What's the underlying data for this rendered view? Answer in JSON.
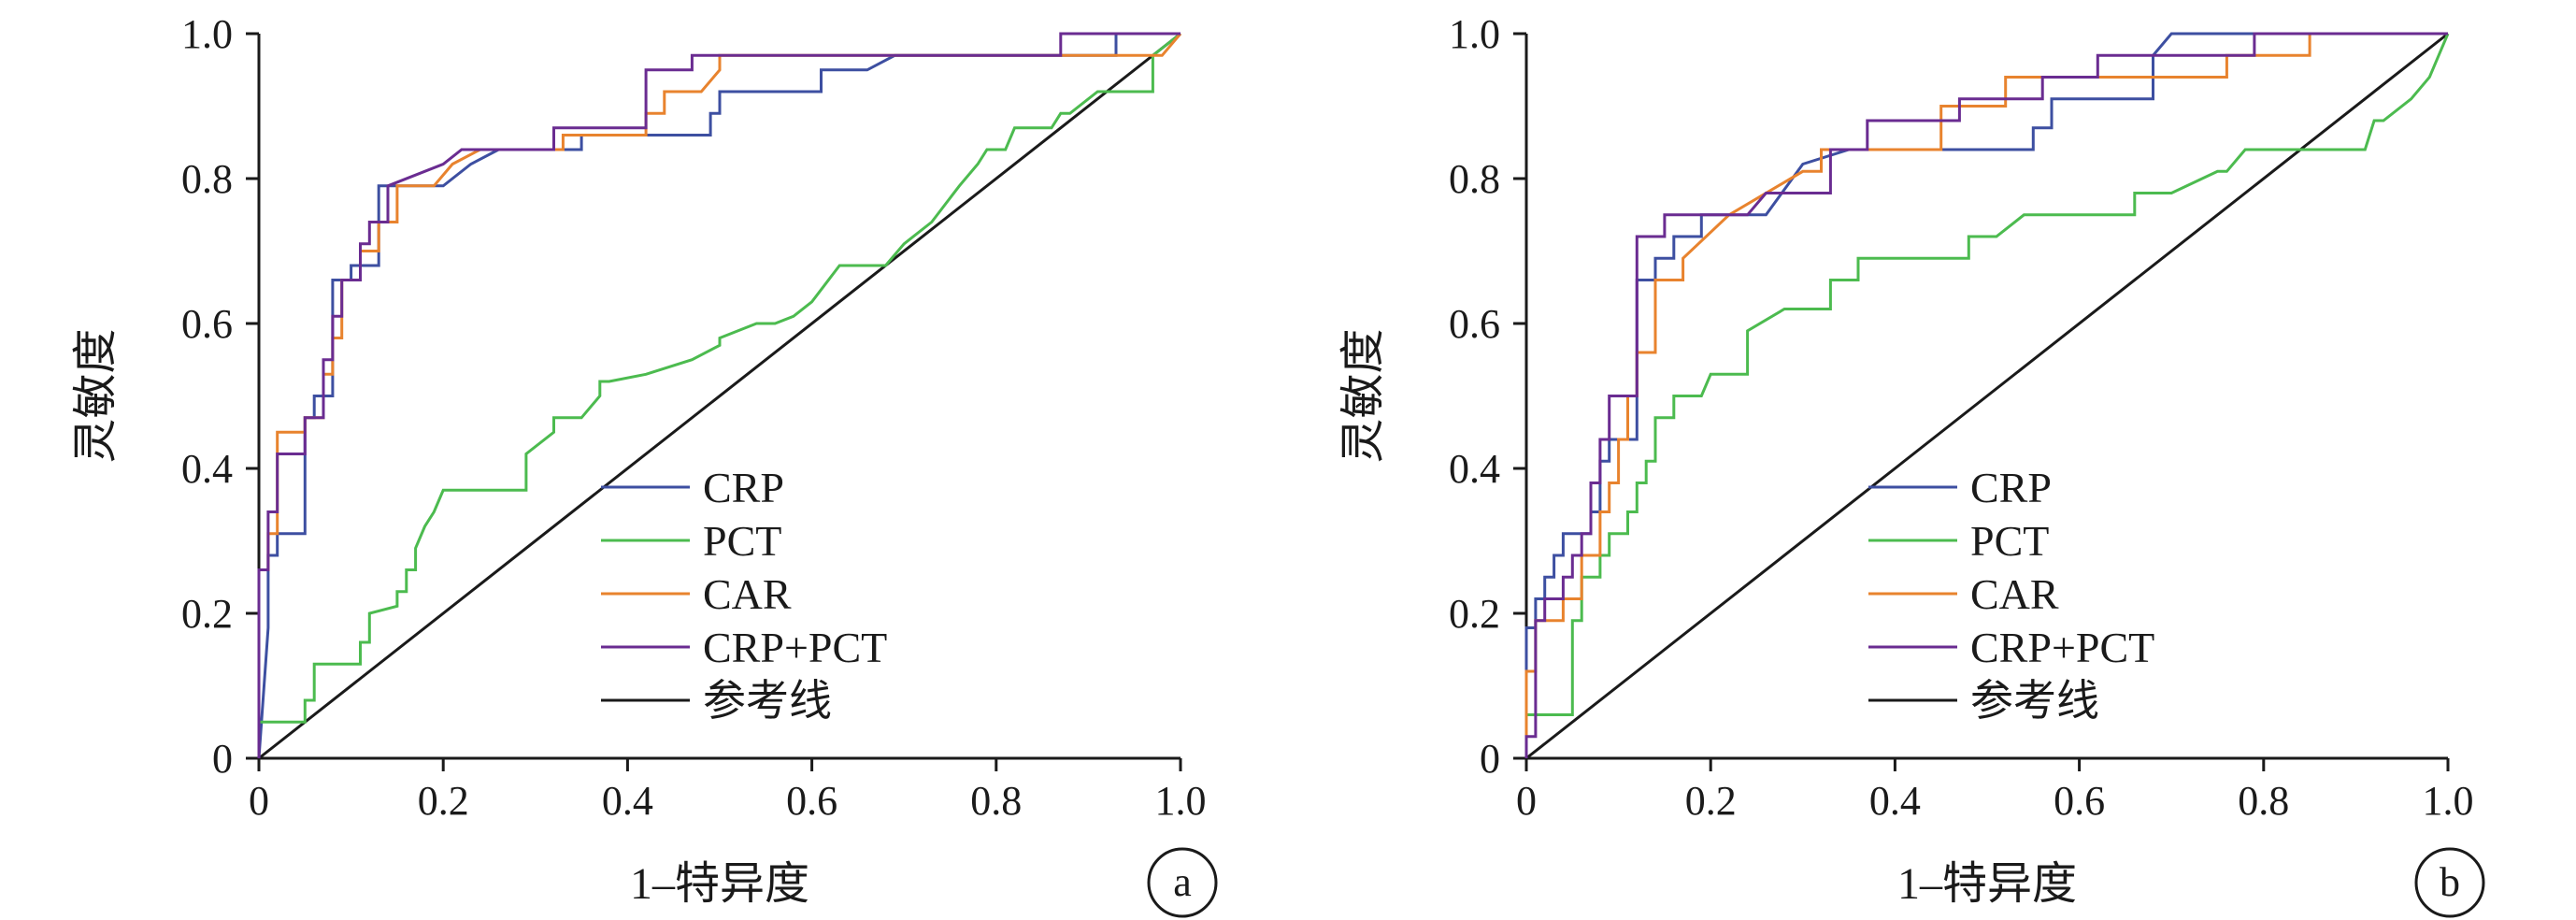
{
  "chart_data": [
    {
      "type": "line",
      "panel_label": "a",
      "xlabel": "1–特异度",
      "ylabel": "灵敏度",
      "xlim": [
        0,
        1
      ],
      "ylim": [
        0,
        1
      ],
      "x_ticks": [
        "0",
        "0.2",
        "0.4",
        "0.6",
        "0.8",
        "1.0"
      ],
      "y_ticks": [
        "0",
        "0.2",
        "0.4",
        "0.6",
        "0.8",
        "1.0"
      ],
      "grid": false,
      "legend_position": "bottom-right",
      "series": [
        {
          "name": "CRP",
          "color": "#3d4fa1",
          "x": [
            0,
            0.01,
            0.01,
            0.02,
            0.02,
            0.05,
            0.05,
            0.06,
            0.06,
            0.08,
            0.08,
            0.1,
            0.1,
            0.13,
            0.13,
            0.2,
            0.23,
            0.26,
            0.35,
            0.35,
            0.44,
            0.49,
            0.49,
            0.5,
            0.5,
            0.61,
            0.61,
            0.66,
            0.69,
            0.69,
            0.93,
            0.93,
            1.0
          ],
          "y": [
            0,
            0.18,
            0.28,
            0.28,
            0.31,
            0.31,
            0.47,
            0.47,
            0.5,
            0.5,
            0.66,
            0.66,
            0.68,
            0.68,
            0.79,
            0.79,
            0.82,
            0.84,
            0.84,
            0.86,
            0.86,
            0.86,
            0.89,
            0.89,
            0.92,
            0.92,
            0.95,
            0.95,
            0.97,
            0.97,
            0.97,
            1.0,
            1.0
          ]
        },
        {
          "name": "PCT",
          "color": "#4cbb4f",
          "x": [
            0,
            0,
            0.05,
            0.05,
            0.06,
            0.06,
            0.11,
            0.11,
            0.12,
            0.12,
            0.15,
            0.15,
            0.16,
            0.16,
            0.17,
            0.17,
            0.18,
            0.19,
            0.2,
            0.29,
            0.29,
            0.32,
            0.32,
            0.35,
            0.37,
            0.37,
            0.38,
            0.42,
            0.47,
            0.5,
            0.5,
            0.54,
            0.56,
            0.58,
            0.6,
            0.63,
            0.68,
            0.7,
            0.73,
            0.76,
            0.78,
            0.79,
            0.81,
            0.82,
            0.86,
            0.87,
            0.88,
            0.91,
            0.92,
            0.97,
            0.97,
            1.0
          ],
          "y": [
            0,
            0.05,
            0.05,
            0.08,
            0.08,
            0.13,
            0.13,
            0.16,
            0.16,
            0.2,
            0.21,
            0.23,
            0.23,
            0.26,
            0.26,
            0.29,
            0.32,
            0.34,
            0.37,
            0.37,
            0.42,
            0.45,
            0.47,
            0.47,
            0.5,
            0.52,
            0.52,
            0.53,
            0.55,
            0.57,
            0.58,
            0.6,
            0.6,
            0.61,
            0.63,
            0.68,
            0.68,
            0.71,
            0.74,
            0.79,
            0.82,
            0.84,
            0.84,
            0.87,
            0.87,
            0.89,
            0.89,
            0.92,
            0.92,
            0.92,
            0.97,
            1.0
          ]
        },
        {
          "name": "CAR",
          "color": "#e8832e",
          "x": [
            0,
            0,
            0.01,
            0.01,
            0.02,
            0.02,
            0.05,
            0.05,
            0.07,
            0.07,
            0.08,
            0.08,
            0.09,
            0.09,
            0.11,
            0.11,
            0.13,
            0.13,
            0.15,
            0.15,
            0.16,
            0.19,
            0.21,
            0.24,
            0.3,
            0.33,
            0.33,
            0.4,
            0.42,
            0.42,
            0.44,
            0.44,
            0.48,
            0.5,
            0.5,
            0.98,
            1.0
          ],
          "y": [
            0,
            0.26,
            0.26,
            0.31,
            0.31,
            0.45,
            0.45,
            0.47,
            0.47,
            0.53,
            0.53,
            0.58,
            0.58,
            0.66,
            0.66,
            0.7,
            0.7,
            0.74,
            0.74,
            0.79,
            0.79,
            0.79,
            0.82,
            0.84,
            0.84,
            0.84,
            0.86,
            0.86,
            0.86,
            0.89,
            0.89,
            0.92,
            0.92,
            0.95,
            0.97,
            0.97,
            1.0
          ]
        },
        {
          "name": "CRP+PCT",
          "color": "#6a2c91",
          "x": [
            0,
            0,
            0.01,
            0.01,
            0.02,
            0.02,
            0.05,
            0.05,
            0.07,
            0.07,
            0.08,
            0.08,
            0.09,
            0.09,
            0.11,
            0.11,
            0.12,
            0.12,
            0.14,
            0.14,
            0.2,
            0.22,
            0.32,
            0.32,
            0.42,
            0.42,
            0.47,
            0.47,
            0.87,
            0.87,
            1.0
          ],
          "y": [
            0,
            0.26,
            0.26,
            0.34,
            0.34,
            0.42,
            0.42,
            0.47,
            0.47,
            0.55,
            0.55,
            0.61,
            0.61,
            0.66,
            0.66,
            0.71,
            0.71,
            0.74,
            0.74,
            0.79,
            0.82,
            0.84,
            0.84,
            0.87,
            0.87,
            0.95,
            0.95,
            0.97,
            0.97,
            1.0,
            1.0
          ]
        },
        {
          "name": "参考线",
          "color": "#1a1a1a",
          "x": [
            0,
            1
          ],
          "y": [
            0,
            1
          ]
        }
      ]
    },
    {
      "type": "line",
      "panel_label": "b",
      "xlabel": "1–特异度",
      "ylabel": "灵敏度",
      "xlim": [
        0,
        1
      ],
      "ylim": [
        0,
        1
      ],
      "x_ticks": [
        "0",
        "0.2",
        "0.4",
        "0.6",
        "0.8",
        "1.0"
      ],
      "y_ticks": [
        "0",
        "0.2",
        "0.4",
        "0.6",
        "0.8",
        "1.0"
      ],
      "grid": false,
      "legend_position": "bottom-right",
      "series": [
        {
          "name": "CRP",
          "color": "#3d4fa1",
          "x": [
            0,
            0,
            0.01,
            0.01,
            0.02,
            0.02,
            0.03,
            0.03,
            0.04,
            0.04,
            0.07,
            0.07,
            0.08,
            0.08,
            0.09,
            0.09,
            0.12,
            0.12,
            0.14,
            0.14,
            0.16,
            0.16,
            0.19,
            0.19,
            0.26,
            0.3,
            0.35,
            0.42,
            0.55,
            0.55,
            0.57,
            0.57,
            0.68,
            0.68,
            0.7,
            1.0
          ],
          "y": [
            0,
            0.18,
            0.18,
            0.22,
            0.22,
            0.25,
            0.25,
            0.28,
            0.28,
            0.31,
            0.31,
            0.34,
            0.34,
            0.41,
            0.41,
            0.44,
            0.44,
            0.66,
            0.66,
            0.69,
            0.69,
            0.72,
            0.72,
            0.75,
            0.75,
            0.82,
            0.84,
            0.84,
            0.84,
            0.87,
            0.87,
            0.91,
            0.91,
            0.97,
            1.0,
            1.0
          ]
        },
        {
          "name": "PCT",
          "color": "#4cbb4f",
          "x": [
            0,
            0,
            0.05,
            0.05,
            0.06,
            0.06,
            0.08,
            0.08,
            0.09,
            0.09,
            0.11,
            0.11,
            0.12,
            0.12,
            0.13,
            0.13,
            0.14,
            0.14,
            0.16,
            0.16,
            0.17,
            0.19,
            0.2,
            0.21,
            0.24,
            0.24,
            0.28,
            0.29,
            0.33,
            0.33,
            0.36,
            0.36,
            0.48,
            0.48,
            0.51,
            0.54,
            0.55,
            0.66,
            0.66,
            0.7,
            0.75,
            0.76,
            0.78,
            0.79,
            0.83,
            0.9,
            0.91,
            0.92,
            0.93,
            0.96,
            0.98,
            0.99,
            1.0
          ],
          "y": [
            0,
            0.06,
            0.06,
            0.19,
            0.19,
            0.25,
            0.25,
            0.28,
            0.28,
            0.31,
            0.31,
            0.34,
            0.34,
            0.38,
            0.38,
            0.41,
            0.41,
            0.47,
            0.47,
            0.5,
            0.5,
            0.5,
            0.53,
            0.53,
            0.53,
            0.59,
            0.62,
            0.62,
            0.62,
            0.66,
            0.66,
            0.69,
            0.69,
            0.72,
            0.72,
            0.75,
            0.75,
            0.75,
            0.78,
            0.78,
            0.81,
            0.81,
            0.84,
            0.84,
            0.84,
            0.84,
            0.84,
            0.88,
            0.88,
            0.91,
            0.94,
            0.97,
            1.0
          ]
        },
        {
          "name": "CAR",
          "color": "#e8832e",
          "x": [
            0,
            0,
            0.01,
            0.01,
            0.04,
            0.04,
            0.06,
            0.06,
            0.08,
            0.08,
            0.09,
            0.09,
            0.1,
            0.1,
            0.11,
            0.11,
            0.12,
            0.12,
            0.14,
            0.14,
            0.17,
            0.17,
            0.22,
            0.3,
            0.32,
            0.32,
            0.42,
            0.42,
            0.45,
            0.45,
            0.52,
            0.52,
            0.58,
            0.58,
            0.76,
            0.76,
            0.83,
            0.83,
            0.85,
            0.85,
            1.0
          ],
          "y": [
            0,
            0.12,
            0.12,
            0.19,
            0.19,
            0.22,
            0.22,
            0.28,
            0.28,
            0.34,
            0.34,
            0.38,
            0.38,
            0.44,
            0.44,
            0.5,
            0.5,
            0.56,
            0.56,
            0.66,
            0.66,
            0.69,
            0.75,
            0.81,
            0.81,
            0.84,
            0.84,
            0.84,
            0.84,
            0.9,
            0.9,
            0.94,
            0.94,
            0.94,
            0.94,
            0.97,
            0.97,
            0.97,
            0.97,
            1.0,
            1.0
          ]
        },
        {
          "name": "CRP+PCT",
          "color": "#6a2c91",
          "x": [
            0,
            0,
            0.01,
            0.01,
            0.02,
            0.02,
            0.04,
            0.04,
            0.05,
            0.05,
            0.06,
            0.06,
            0.07,
            0.07,
            0.08,
            0.08,
            0.09,
            0.09,
            0.12,
            0.12,
            0.14,
            0.14,
            0.15,
            0.15,
            0.24,
            0.26,
            0.33,
            0.33,
            0.37,
            0.37,
            0.42,
            0.42,
            0.47,
            0.47,
            0.52,
            0.52,
            0.56,
            0.56,
            0.62,
            0.62,
            0.72,
            0.72,
            0.79,
            0.79,
            1.0
          ],
          "y": [
            0,
            0.03,
            0.03,
            0.19,
            0.19,
            0.22,
            0.22,
            0.25,
            0.25,
            0.28,
            0.28,
            0.31,
            0.31,
            0.38,
            0.38,
            0.44,
            0.44,
            0.5,
            0.5,
            0.72,
            0.72,
            0.72,
            0.72,
            0.75,
            0.75,
            0.78,
            0.78,
            0.84,
            0.84,
            0.88,
            0.88,
            0.88,
            0.88,
            0.91,
            0.91,
            0.91,
            0.91,
            0.94,
            0.94,
            0.97,
            0.97,
            0.97,
            0.97,
            1.0,
            1.0
          ]
        },
        {
          "name": "参考线",
          "color": "#1a1a1a",
          "x": [
            0,
            1
          ],
          "y": [
            0,
            1
          ]
        }
      ]
    }
  ]
}
